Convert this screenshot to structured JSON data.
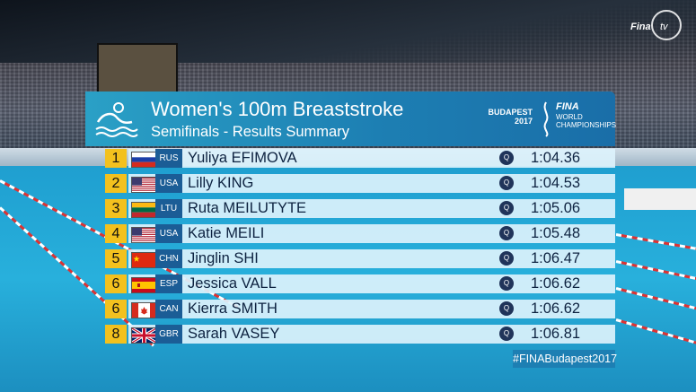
{
  "header": {
    "title": "Women's 100m Breaststroke",
    "subtitle": "Semifinals - Results Summary"
  },
  "event_logo": {
    "city_line1": "BUDAPEST",
    "city_line2": "2017",
    "brand": "FINA",
    "world_line1": "WORLD",
    "world_line2": "CHAMPIONSHIPS"
  },
  "broadcaster": {
    "logo_text": "Fina tv"
  },
  "results": [
    {
      "rank": "1",
      "noc": "RUS",
      "name": "Yuliya EFIMOVA",
      "q": "Q",
      "time": "1:04.36",
      "flag": "rus"
    },
    {
      "rank": "2",
      "noc": "USA",
      "name": "Lilly KING",
      "q": "Q",
      "time": "1:04.53",
      "flag": "usa"
    },
    {
      "rank": "3",
      "noc": "LTU",
      "name": "Ruta MEILUTYTE",
      "q": "Q",
      "time": "1:05.06",
      "flag": "ltu"
    },
    {
      "rank": "4",
      "noc": "USA",
      "name": "Katie MEILI",
      "q": "Q",
      "time": "1:05.48",
      "flag": "usa"
    },
    {
      "rank": "5",
      "noc": "CHN",
      "name": "Jinglin SHI",
      "q": "Q",
      "time": "1:06.47",
      "flag": "chn"
    },
    {
      "rank": "6",
      "noc": "ESP",
      "name": "Jessica VALL",
      "q": "Q",
      "time": "1:06.62",
      "flag": "esp"
    },
    {
      "rank": "6",
      "noc": "CAN",
      "name": "Kierra SMITH",
      "q": "Q",
      "time": "1:06.62",
      "flag": "can"
    },
    {
      "rank": "8",
      "noc": "GBR",
      "name": "Sarah VASEY",
      "q": "Q",
      "time": "1:06.81",
      "flag": "gbr"
    }
  ],
  "hashtag": "#FINABudapest2017",
  "colors": {
    "rank_bg": "#f3c11e",
    "header_bg": "#1d7fb3",
    "row_bg": "#dcf2fc",
    "q_badge": "#20345a"
  }
}
